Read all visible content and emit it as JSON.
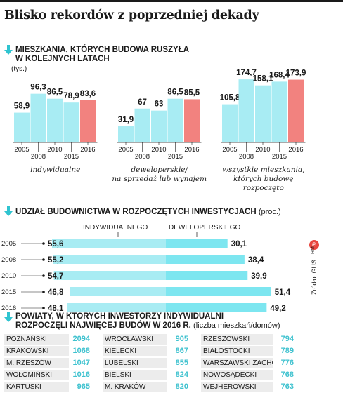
{
  "title": "Blisko rekordów z poprzedniej dekady",
  "colors": {
    "accent": "#2fc4d0",
    "bar": "#a8ecf3",
    "highlight": "#f2827f",
    "bar2": "#7de6f0"
  },
  "section1": {
    "title_line1": "MIESZKANIA, KTÓRYCH BUDOWA RUSZYŁA",
    "title_line2": "W KOLEJNYCH LATACH",
    "unit": "(tys.)"
  },
  "section2": {
    "title": "UDZIAŁ BUDOWNICTWA W ROZPOCZĘTYCH INWESTYCJACH",
    "unit": "(proc.)",
    "label_left": "INDYWIDUALNEGO",
    "label_right": "DEWELOPERSKIEGO"
  },
  "section3": {
    "title_line1": "POWIATY, W KTÓRYCH INWESTORZY INDYWIDUALNI",
    "title_line2": "ROZPOCZĘLI NAJWIĘCEJ BUDÓW W 2016 R.",
    "unit": "(liczba mieszkań/domów)"
  },
  "source": "Źródło: GUS",
  "rm": "RM",
  "copyright": "℗",
  "chart_data": [
    {
      "type": "bar",
      "title": "indywidualne",
      "categories": [
        "2005",
        "2008",
        "2010",
        "2015",
        "2016"
      ],
      "values": [
        58.9,
        96.3,
        86.5,
        78.9,
        83.6
      ],
      "value_labels": [
        "58,9",
        "96,3",
        "86,5",
        "78,9",
        "83,6"
      ],
      "highlight_index": 4
    },
    {
      "type": "bar",
      "title": "deweloperskie/ na sprzedaż lub wynajem",
      "title_line1": "deweloperskie/",
      "title_line2": "na sprzedaż lub wynajem",
      "categories": [
        "2005",
        "2008",
        "2010",
        "2015",
        "2016"
      ],
      "values": [
        31.9,
        67,
        63,
        86.5,
        85.5
      ],
      "value_labels": [
        "31,9",
        "67",
        "63",
        "86,5",
        "85,5"
      ],
      "highlight_index": 4
    },
    {
      "type": "bar",
      "title": "wszystkie mieszkania, których budowę rozpoczęto",
      "title_line1": "wszystkie mieszkania,",
      "title_line2": "których budowę",
      "title_line3": "rozpoczęto",
      "categories": [
        "2005",
        "2008",
        "2010",
        "2015",
        "2016"
      ],
      "values": [
        105.8,
        174.7,
        158.1,
        168.4,
        173.9
      ],
      "value_labels": [
        "105,8",
        "174,7",
        "158,1",
        "168,4",
        "173,9"
      ],
      "highlight_index": 4
    },
    {
      "type": "bar",
      "title": "Udział budownictwa w rozpoczętych inwestycjach",
      "categories": [
        "2005",
        "2008",
        "2010",
        "2015",
        "2016"
      ],
      "series": [
        {
          "name": "INDYWIDUALNEGO",
          "values": [
            55.6,
            55.2,
            54.7,
            46.8,
            48.1
          ],
          "labels": [
            "55,6",
            "55,2",
            "54,7",
            "46,8",
            "48,1"
          ]
        },
        {
          "name": "DEWELOPERSKIEGO",
          "values": [
            30.1,
            38.4,
            39.9,
            51.4,
            49.2
          ],
          "labels": [
            "30,1",
            "38,4",
            "39,9",
            "51,4",
            "49,2"
          ]
        }
      ]
    },
    {
      "type": "table",
      "title": "Powiaty, w których inwestorzy indywidualni rozpoczęli najwięcej budów w 2016 r.",
      "columns": [
        [
          {
            "name": "POZNAŃSKI",
            "value": 2094
          },
          {
            "name": "KRAKOWSKI",
            "value": 1068
          },
          {
            "name": "M. RZESZÓW",
            "value": 1047
          },
          {
            "name": "WOŁOMIŃSKI",
            "value": 1016
          },
          {
            "name": "KARTUSKI",
            "value": 965
          }
        ],
        [
          {
            "name": "WROCŁAWSKI",
            "value": 905
          },
          {
            "name": "KIELECKI",
            "value": 867
          },
          {
            "name": "LUBELSKI",
            "value": 855
          },
          {
            "name": "BIELSKI",
            "value": 824
          },
          {
            "name": "M. KRAKÓW",
            "value": 820
          }
        ],
        [
          {
            "name": "RZESZOWSKI",
            "value": 794
          },
          {
            "name": "BIAŁOSTOCKI",
            "value": 789
          },
          {
            "name": "WARSZAWSKI ZACHODNI",
            "value": 776
          },
          {
            "name": "NOWOSĄDECKI",
            "value": 768
          },
          {
            "name": "WEJHEROWSKI",
            "value": 763
          }
        ]
      ]
    }
  ]
}
